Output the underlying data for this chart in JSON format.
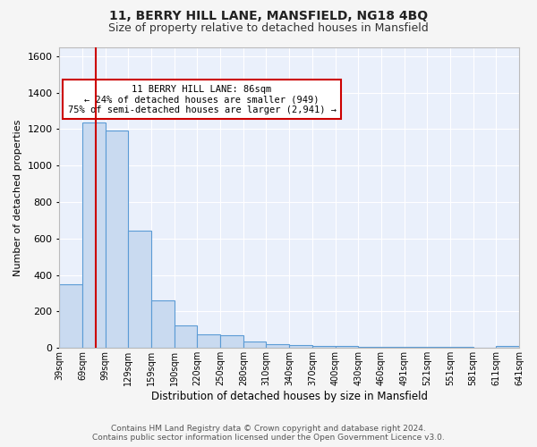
{
  "title": "11, BERRY HILL LANE, MANSFIELD, NG18 4BQ",
  "subtitle": "Size of property relative to detached houses in Mansfield",
  "xlabel": "Distribution of detached houses by size in Mansfield",
  "ylabel": "Number of detached properties",
  "bar_color": "#c9daf0",
  "bar_edge_color": "#5b9bd5",
  "bg_color": "#eaf0fb",
  "grid_color": "#ffffff",
  "annotation_line1": "11 BERRY HILL LANE: 86sqm",
  "annotation_line2": "← 24% of detached houses are smaller (949)",
  "annotation_line3": "75% of semi-detached houses are larger (2,941) →",
  "property_sqm": 86,
  "footer": "Contains HM Land Registry data © Crown copyright and database right 2024.\nContains public sector information licensed under the Open Government Licence v3.0.",
  "bin_left_edges": [
    39,
    69,
    99,
    129,
    159,
    190,
    220,
    250,
    280,
    310,
    340,
    370,
    400,
    430,
    460,
    491,
    521,
    551,
    581,
    611
  ],
  "bin_labels": [
    "39sqm",
    "69sqm",
    "99sqm",
    "129sqm",
    "159sqm",
    "190sqm",
    "220sqm",
    "250sqm",
    "280sqm",
    "310sqm",
    "340sqm",
    "370sqm",
    "400sqm",
    "430sqm",
    "460sqm",
    "491sqm",
    "521sqm",
    "551sqm",
    "581sqm",
    "611sqm",
    "641sqm"
  ],
  "bar_heights": [
    350,
    1235,
    1190,
    645,
    260,
    125,
    75,
    70,
    35,
    22,
    15,
    12,
    10,
    8,
    6,
    6,
    5,
    4,
    3,
    12
  ],
  "ylim": [
    0,
    1650
  ],
  "yticks": [
    0,
    200,
    400,
    600,
    800,
    1000,
    1200,
    1400,
    1600
  ]
}
